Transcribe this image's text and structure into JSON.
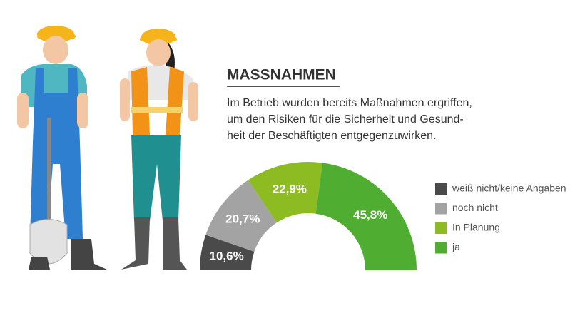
{
  "chart_data": {
    "type": "half-donut",
    "title": "MASSNAHMEN",
    "subtitle": [
      "Im Betrieb wurden bereits Maßnahmen ergriffen,",
      "um den Risiken für die Sicherheit und Gesund-",
      "heit der Beschäftigten entgegenzuwirken."
    ],
    "categories": [
      "weiß nicht/keine Angaben",
      "noch nicht",
      "In Planung",
      "ja"
    ],
    "values": [
      10.6,
      20.7,
      22.9,
      45.8
    ],
    "value_labels": [
      "10,6%",
      "20,7%",
      "22,9%",
      "45,8%"
    ],
    "colors": [
      "#4a4a4a",
      "#a3a3a3",
      "#8dbb22",
      "#4fae32"
    ],
    "legend": "right"
  }
}
